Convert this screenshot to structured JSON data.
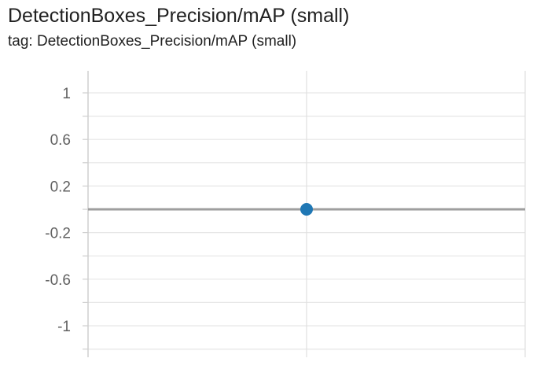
{
  "header": {
    "title": "DetectionBoxes_Precision/mAP (small)",
    "subtitle": "tag: DetectionBoxes_Precision/mAP (small)"
  },
  "chart_data": {
    "type": "scatter",
    "title": "DetectionBoxes_Precision/mAP (small)",
    "xlabel": "",
    "ylabel": "",
    "ylim": [
      -1.2,
      1.2
    ],
    "yticks": [
      1,
      0.6,
      0.2,
      -0.2,
      -0.6,
      -1
    ],
    "ytick_labels": [
      "1",
      "0.6",
      "0.2",
      "-0.2",
      "-0.6",
      "-1"
    ],
    "xtick_labels": [],
    "grid": true,
    "series": [
      {
        "color": "#1f77b4",
        "points": [
          {
            "y": 0
          }
        ]
      }
    ],
    "zero_line_color": "#9e9e9e"
  }
}
